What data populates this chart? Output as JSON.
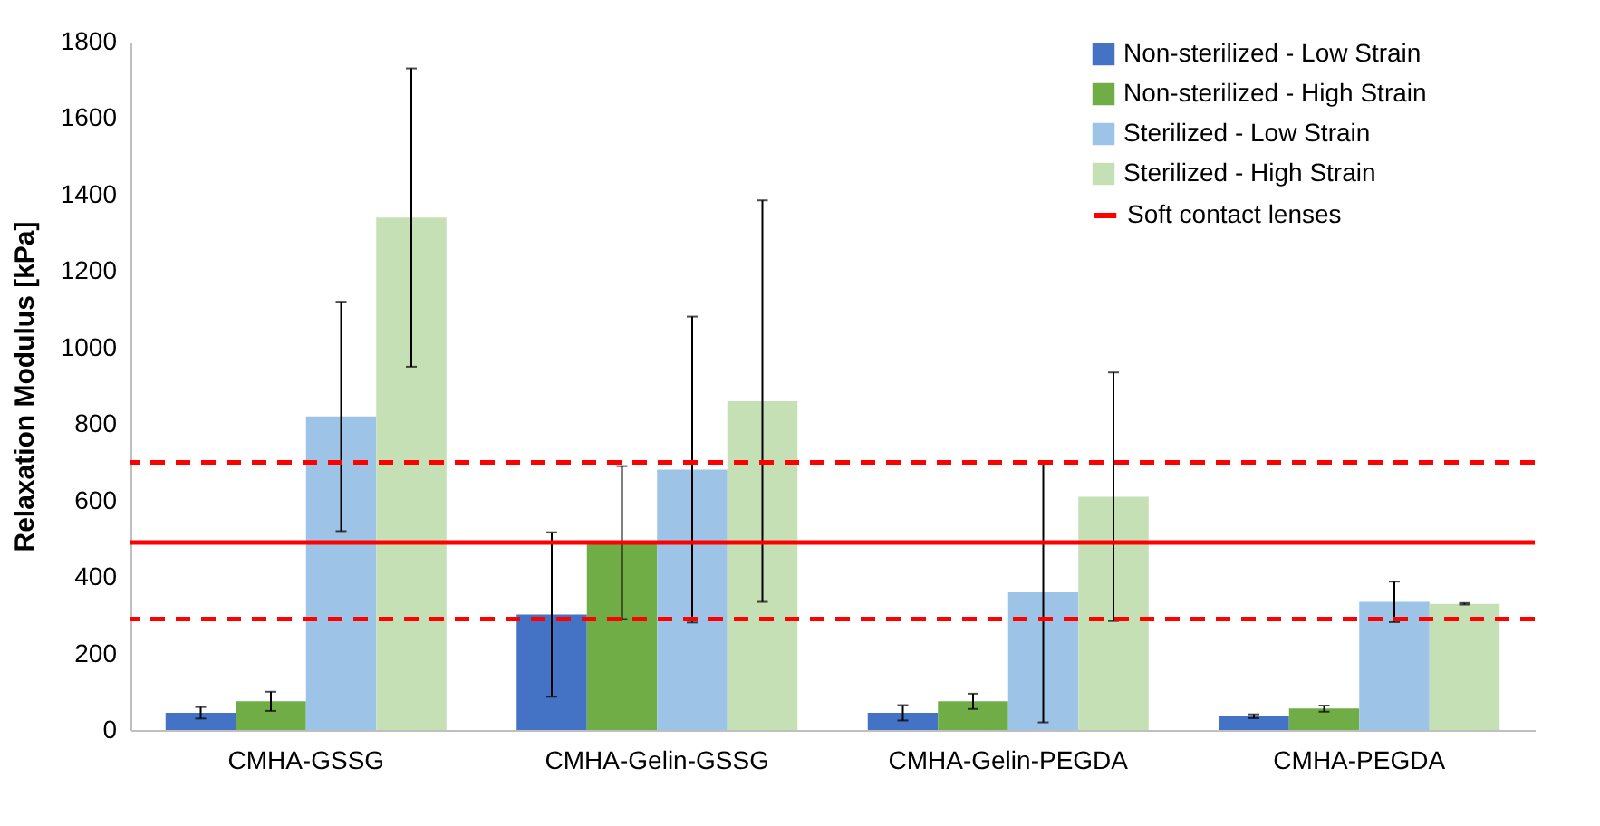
{
  "chart_data": {
    "type": "bar",
    "ylabel": "Relaxation Modulus [kPa]",
    "categories": [
      "CMHA-GSSG",
      "CMHA-Gelin-GSSG",
      "CMHA-Gelin-PEGDA",
      "CMHA-PEGDA"
    ],
    "series": [
      {
        "name": "Non-sterilized -  Low Strain",
        "color": "#4472c4",
        "values": [
          45,
          302,
          45,
          36
        ],
        "errors": [
          15,
          215,
          20,
          5
        ]
      },
      {
        "name": "Non-sterilized -  High Strain",
        "color": "#70ad47",
        "values": [
          75,
          490,
          75,
          56
        ],
        "errors": [
          25,
          200,
          20,
          8
        ]
      },
      {
        "name": "Sterilized -  Low Strain",
        "color": "#9dc3e6",
        "values": [
          820,
          681,
          360,
          335
        ],
        "errors": [
          300,
          400,
          340,
          53
        ]
      },
      {
        "name": "Sterilized -  High Strain",
        "color": "#c5e0b4",
        "values": [
          1340,
          860,
          610,
          330
        ],
        "errors": [
          390,
          525,
          325,
          2
        ]
      }
    ],
    "ref_lines": [
      {
        "axis": "y",
        "value": 490,
        "label": "Soft contact lenses",
        "color": "#ff0000",
        "line_style": "solid"
      },
      {
        "axis": "y",
        "value": 700,
        "color": "#ff0000",
        "line_style": "dashed"
      },
      {
        "axis": "y",
        "value": 290,
        "color": "#ff0000",
        "line_style": "dashed"
      }
    ],
    "ylim": [
      0,
      1800
    ],
    "yticks": [
      0,
      200,
      400,
      600,
      800,
      1000,
      1200,
      1400,
      1600,
      1800
    ],
    "grid": false,
    "legend": "top right"
  }
}
